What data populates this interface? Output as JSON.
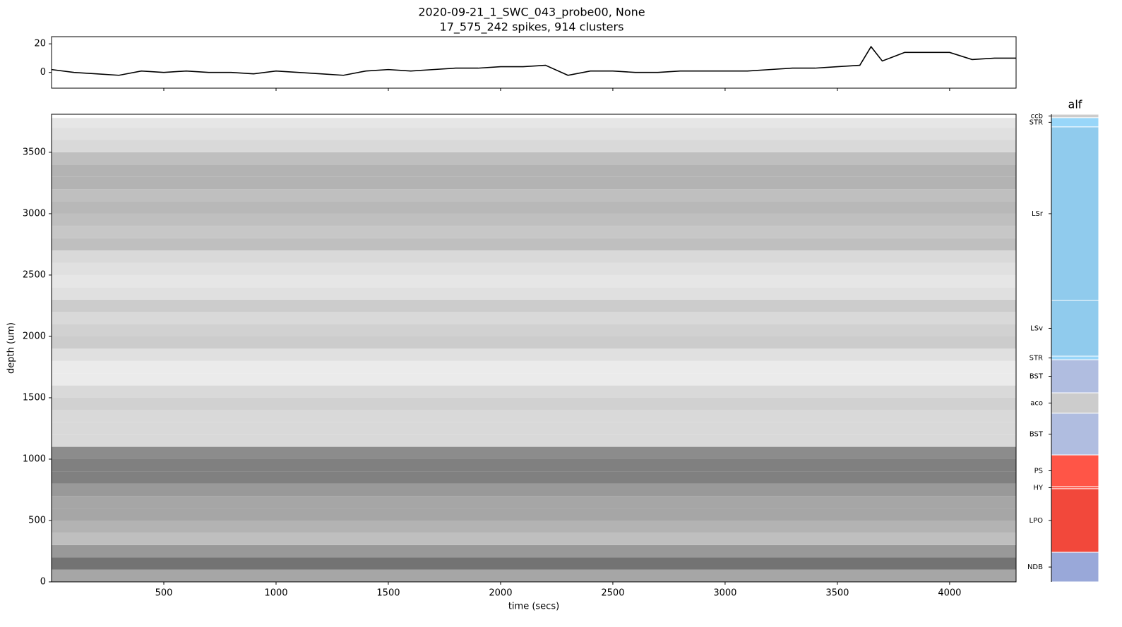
{
  "title": "2020-09-21_1_SWC_043_probe00, None",
  "subtitle": "17_575_242 spikes, 914 clusters",
  "chart_data": [
    {
      "type": "line",
      "x": [
        0,
        100,
        200,
        300,
        400,
        500,
        600,
        700,
        800,
        900,
        1000,
        1100,
        1200,
        1300,
        1400,
        1500,
        1600,
        1700,
        1800,
        1900,
        2000,
        2100,
        2200,
        2300,
        2400,
        2500,
        2600,
        2700,
        2800,
        2900,
        3000,
        3100,
        3200,
        3300,
        3400,
        3500,
        3600,
        3650,
        3700,
        3800,
        3900,
        4000,
        4100,
        4200,
        4296
      ],
      "series": [
        {
          "color": "#000000",
          "values": [
            2,
            0,
            -1,
            -2,
            1,
            0,
            1,
            0,
            0,
            -1,
            1,
            0,
            -1,
            -2,
            1,
            2,
            1,
            2,
            3,
            3,
            4,
            4,
            5,
            -2,
            1,
            1,
            0,
            0,
            1,
            1,
            1,
            1,
            2,
            3,
            3,
            4,
            5,
            18,
            8,
            14,
            14,
            14,
            9,
            10,
            10
          ]
        }
      ],
      "xlim": [
        0,
        4296
      ],
      "ylim": [
        -11,
        25
      ],
      "yticks": [
        0,
        20
      ],
      "xticks": [
        500,
        1000,
        1500,
        2000,
        2500,
        3000,
        3500,
        4000
      ]
    },
    {
      "type": "heatmap",
      "colormap": "Greys",
      "xlabel": "time (secs)",
      "ylabel": "depth (um)",
      "xlim": [
        0,
        4296
      ],
      "ylim": [
        0,
        3810
      ],
      "xticks": [
        500,
        1000,
        1500,
        2000,
        2500,
        3000,
        3500,
        4000
      ],
      "yticks": [
        0,
        500,
        1000,
        1500,
        2000,
        2500,
        3000,
        3500
      ],
      "depth_bins": [
        0,
        100,
        200,
        300,
        400,
        500,
        600,
        700,
        800,
        900,
        1000,
        1100,
        1200,
        1300,
        1400,
        1500,
        1600,
        1700,
        1800,
        1900,
        2000,
        2100,
        2200,
        2300,
        2400,
        2500,
        2600,
        2700,
        2800,
        2900,
        3000,
        3100,
        3200,
        3300,
        3400,
        3500,
        3600,
        3700,
        3780
      ],
      "intensity": [
        0.35,
        0.55,
        0.4,
        0.25,
        0.3,
        0.35,
        0.35,
        0.4,
        0.5,
        0.5,
        0.45,
        0.15,
        0.15,
        0.15,
        0.18,
        0.15,
        0.08,
        0.08,
        0.12,
        0.2,
        0.18,
        0.15,
        0.2,
        0.12,
        0.1,
        0.12,
        0.15,
        0.25,
        0.22,
        0.25,
        0.28,
        0.25,
        0.3,
        0.3,
        0.25,
        0.15,
        0.12,
        0.1
      ]
    },
    {
      "type": "interval",
      "title": "alf",
      "ylim": [
        0,
        3810
      ],
      "regions": [
        {
          "acronym": "ccb",
          "top": 3810,
          "bottom": 3782,
          "color": "#cccccc"
        },
        {
          "acronym": "STR",
          "top": 3782,
          "bottom": 3707,
          "color": "#98d6f9"
        },
        {
          "acronym": "LSr",
          "top": 3707,
          "bottom": 2293,
          "color": "#90cbed"
        },
        {
          "acronym": "LSv",
          "top": 2293,
          "bottom": 1839,
          "color": "#90cbed"
        },
        {
          "acronym": "STR",
          "top": 1839,
          "bottom": 1810,
          "color": "#98d6f9"
        },
        {
          "acronym": "BST",
          "top": 1810,
          "bottom": 1540,
          "color": "#b0bde0"
        },
        {
          "acronym": "aco",
          "top": 1540,
          "bottom": 1374,
          "color": "#cccccc"
        },
        {
          "acronym": "BST",
          "top": 1374,
          "bottom": 1034,
          "color": "#b0bde0"
        },
        {
          "acronym": "PS",
          "top": 1034,
          "bottom": 776,
          "color": "#ff5547"
        },
        {
          "acronym": "HY",
          "top": 776,
          "bottom": 759,
          "color": "#ff4c3e"
        },
        {
          "acronym": "LPO",
          "top": 759,
          "bottom": 241,
          "color": "#f2483b"
        },
        {
          "acronym": "NDB",
          "top": 241,
          "bottom": 0,
          "color": "#99a8d9"
        }
      ]
    }
  ]
}
